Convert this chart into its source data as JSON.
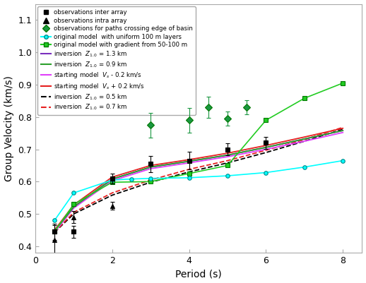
{
  "title": "",
  "xlabel": "Period (s)",
  "ylabel": "Group Velocity (km/s)",
  "xlim": [
    0.2,
    8.5
  ],
  "ylim": [
    0.38,
    1.15
  ],
  "xticks": [
    0,
    2,
    4,
    6,
    8
  ],
  "yticks": [
    0.4,
    0.5,
    0.6,
    0.7,
    0.8,
    0.9,
    1.0,
    1.1
  ],
  "obs_inter": {
    "x": [
      0.5,
      1.0,
      2.0,
      3.0,
      4.0,
      5.0,
      6.0
    ],
    "y": [
      0.445,
      0.445,
      0.61,
      0.655,
      0.665,
      0.7,
      0.72
    ],
    "yerr": [
      0.025,
      0.018,
      0.015,
      0.025,
      0.028,
      0.018,
      0.018
    ],
    "color": "black",
    "marker": "s",
    "markersize": 4,
    "label": "observations inter array"
  },
  "obs_intra": {
    "x": [
      0.5,
      1.0,
      2.0
    ],
    "y": [
      0.42,
      0.49,
      0.525
    ],
    "yerr": [
      0.045,
      0.018,
      0.012
    ],
    "color": "black",
    "marker": "^",
    "markersize": 5,
    "label": "observations intra array"
  },
  "obs_basin": {
    "x": [
      3.0,
      4.0,
      4.5,
      5.0,
      5.5
    ],
    "y": [
      0.775,
      0.79,
      0.83,
      0.795,
      0.83
    ],
    "yerr": [
      0.038,
      0.038,
      0.032,
      0.022,
      0.022
    ],
    "color": "#1a9641",
    "marker": "D",
    "markersize": 5,
    "label": "observations for paths crossing edge of basin"
  },
  "model_uniform": {
    "x": [
      0.5,
      1.0,
      2.0,
      2.5,
      3.0,
      4.0,
      5.0,
      6.0,
      7.0,
      8.0
    ],
    "y": [
      0.48,
      0.565,
      0.605,
      0.608,
      0.61,
      0.612,
      0.618,
      0.628,
      0.645,
      0.665
    ],
    "color": "cyan",
    "marker": "o",
    "markersize": 4,
    "label": "original model  with uniform 100 m layers"
  },
  "model_gradient": {
    "x": [
      0.5,
      1.0,
      2.0,
      3.0,
      4.0,
      5.0,
      6.0,
      7.0,
      8.0
    ],
    "y": [
      0.445,
      0.53,
      0.598,
      0.6,
      0.625,
      0.65,
      0.79,
      0.858,
      0.905
    ],
    "color": "#22cc22",
    "marker": "s",
    "markersize": 4,
    "label": "original model with gradient from 50-100 m"
  },
  "inv_z13": {
    "x": [
      0.5,
      1.0,
      2.0,
      3.0,
      4.0,
      5.0,
      6.0,
      7.0,
      8.0
    ],
    "y": [
      0.447,
      0.522,
      0.608,
      0.645,
      0.663,
      0.682,
      0.706,
      0.732,
      0.758
    ],
    "color": "#7b2fbe",
    "label": "inversion  $Z_{1.0}$ = 1.3 km"
  },
  "inv_z09": {
    "x": [
      0.5,
      1.0,
      2.0,
      3.0,
      4.0,
      5.0,
      6.0,
      7.0,
      8.0
    ],
    "y": [
      0.447,
      0.522,
      0.608,
      0.645,
      0.663,
      0.682,
      0.706,
      0.732,
      0.758
    ],
    "color": "#2ca02c",
    "label": "inversion  $Z_{1.0}$ = 0.9 km"
  },
  "start_vm02": {
    "x": [
      0.5,
      1.0,
      2.0,
      3.0,
      4.0,
      5.0,
      6.0,
      7.0,
      8.0
    ],
    "y": [
      0.443,
      0.518,
      0.603,
      0.64,
      0.658,
      0.677,
      0.7,
      0.725,
      0.752
    ],
    "color": "#e040fb",
    "label": "starting model  $V_s$ - 0.2 km/s"
  },
  "start_vp02": {
    "x": [
      0.5,
      1.0,
      2.0,
      3.0,
      4.0,
      5.0,
      6.0,
      7.0,
      8.0
    ],
    "y": [
      0.45,
      0.528,
      0.614,
      0.65,
      0.668,
      0.688,
      0.712,
      0.738,
      0.765
    ],
    "color": "#e62020",
    "label": "starting model  $V_s$ + 0.2 km/s"
  },
  "inv_z05": {
    "x": [
      0.5,
      1.0,
      2.0,
      3.0,
      4.0,
      5.0,
      6.0,
      7.0,
      8.0
    ],
    "y": [
      0.443,
      0.5,
      0.558,
      0.598,
      0.63,
      0.658,
      0.69,
      0.725,
      0.762
    ],
    "color": "black",
    "label": "inversion  $Z_{1.0}$ = 0.5 km"
  },
  "inv_z07": {
    "x": [
      0.5,
      1.0,
      2.0,
      3.0,
      4.0,
      5.0,
      6.0,
      7.0,
      8.0
    ],
    "y": [
      0.443,
      0.505,
      0.565,
      0.605,
      0.638,
      0.665,
      0.697,
      0.73,
      0.768
    ],
    "color": "#e62020",
    "label": "inversion  $Z_{1.0}$ = 0.7 km"
  }
}
